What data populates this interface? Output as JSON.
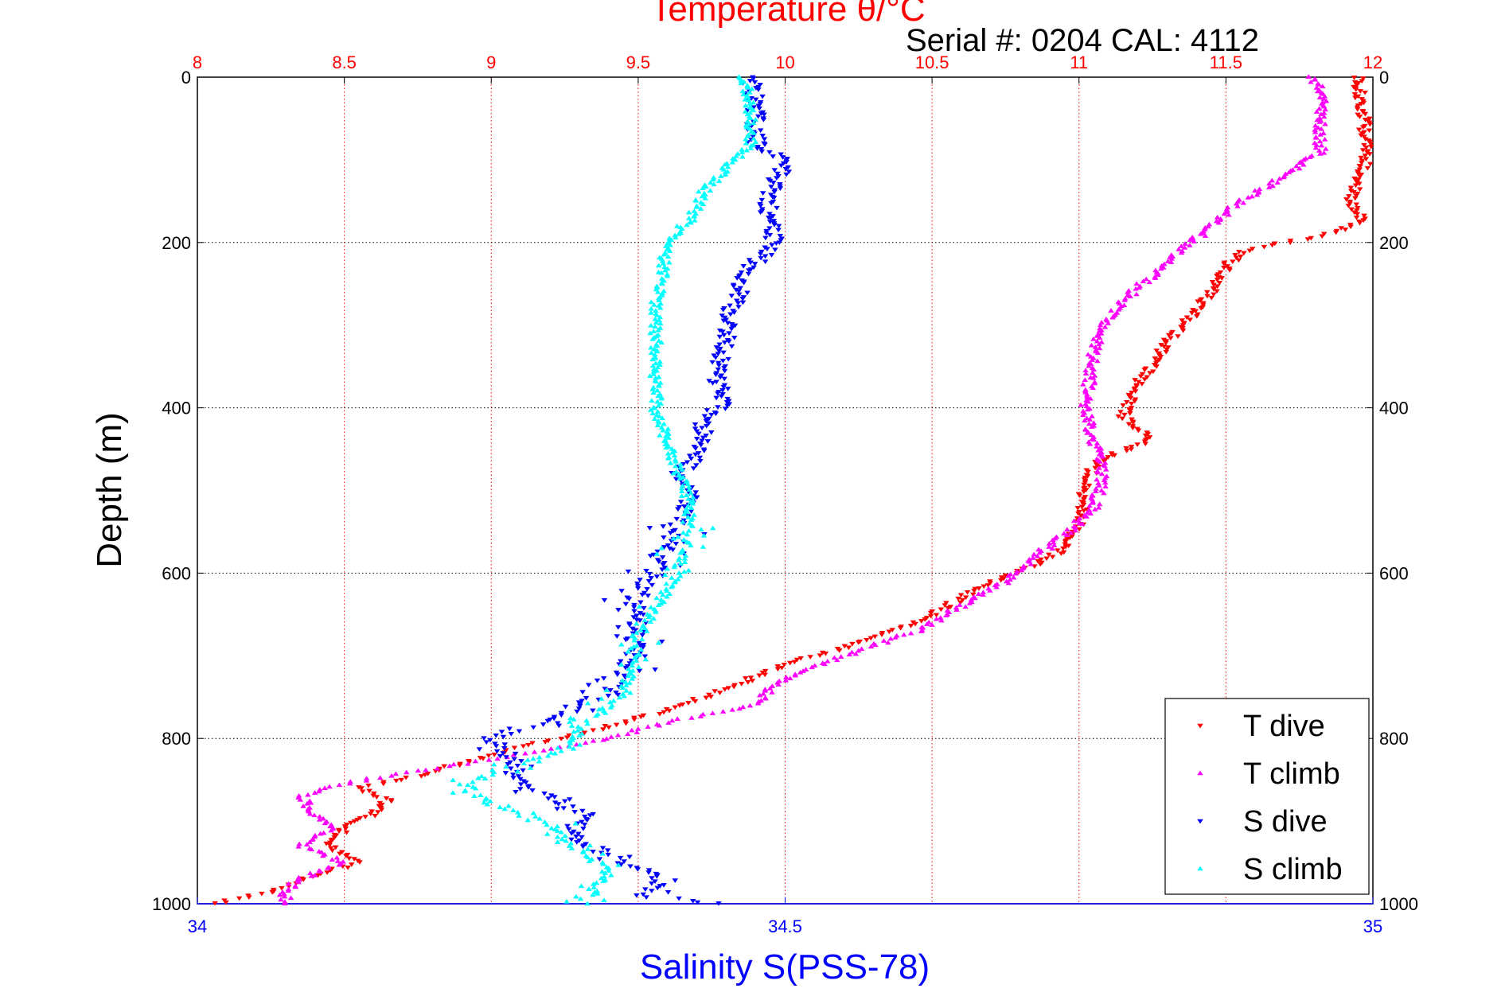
{
  "chart_data": {
    "type": "scatter",
    "title_top": "Temperature θ/°C",
    "serial_label": "Serial #: 0204  CAL: 4112",
    "xlabel": "Salinity S(PSS-78)",
    "ylabel": "Depth (m)",
    "top_axis": {
      "label": "Temperature θ/°C",
      "range": [
        8,
        12
      ],
      "ticks": [
        "8",
        "8.5",
        "9",
        "9.5",
        "10",
        "10.5",
        "11",
        "11.5",
        "12"
      ],
      "color": "#ff0000",
      "grid": true
    },
    "bottom_axis": {
      "label": "Salinity S(PSS-78)",
      "range": [
        34,
        35
      ],
      "ticks": [
        "34",
        "34.5",
        "35"
      ],
      "color": "#0000ff"
    },
    "depth_axis": {
      "range": [
        0,
        1000
      ],
      "reversed": true,
      "ticks": [
        "0",
        "200",
        "400",
        "600",
        "800",
        "1000"
      ],
      "grid": true
    },
    "legend": {
      "placement": "bottom-right",
      "entries": [
        "T dive",
        "T climb",
        "S dive",
        "S climb"
      ]
    },
    "series": [
      {
        "name": "T dive",
        "axis": "temperature",
        "color": "#ff0000",
        "marker": "triangle-down",
        "profile": [
          [
            0,
            11.95
          ],
          [
            50,
            11.97
          ],
          [
            100,
            11.98
          ],
          [
            150,
            11.92
          ],
          [
            175,
            11.97
          ],
          [
            190,
            11.85
          ],
          [
            200,
            11.7
          ],
          [
            210,
            11.55
          ],
          [
            230,
            11.5
          ],
          [
            260,
            11.45
          ],
          [
            290,
            11.38
          ],
          [
            320,
            11.3
          ],
          [
            350,
            11.25
          ],
          [
            370,
            11.2
          ],
          [
            390,
            11.18
          ],
          [
            410,
            11.15
          ],
          [
            425,
            11.2
          ],
          [
            440,
            11.25
          ],
          [
            455,
            11.12
          ],
          [
            470,
            11.05
          ],
          [
            500,
            11.02
          ],
          [
            540,
            11.0
          ],
          [
            570,
            10.95
          ],
          [
            590,
            10.85
          ],
          [
            610,
            10.7
          ],
          [
            640,
            10.55
          ],
          [
            660,
            10.45
          ],
          [
            690,
            10.2
          ],
          [
            710,
            10.0
          ],
          [
            740,
            9.8
          ],
          [
            770,
            9.55
          ],
          [
            790,
            9.35
          ],
          [
            810,
            9.1
          ],
          [
            830,
            8.9
          ],
          [
            850,
            8.7
          ],
          [
            860,
            8.55
          ],
          [
            875,
            8.65
          ],
          [
            890,
            8.6
          ],
          [
            910,
            8.5
          ],
          [
            930,
            8.45
          ],
          [
            950,
            8.55
          ],
          [
            970,
            8.35
          ],
          [
            985,
            8.25
          ],
          [
            1000,
            8.05
          ]
        ]
      },
      {
        "name": "T climb",
        "axis": "temperature",
        "color": "#ff00ff",
        "marker": "triangle-up",
        "profile": [
          [
            0,
            11.8
          ],
          [
            30,
            11.83
          ],
          [
            60,
            11.82
          ],
          [
            90,
            11.82
          ],
          [
            120,
            11.7
          ],
          [
            150,
            11.55
          ],
          [
            180,
            11.45
          ],
          [
            210,
            11.35
          ],
          [
            240,
            11.25
          ],
          [
            270,
            11.15
          ],
          [
            300,
            11.08
          ],
          [
            330,
            11.05
          ],
          [
            360,
            11.04
          ],
          [
            400,
            11.02
          ],
          [
            430,
            11.04
          ],
          [
            460,
            11.07
          ],
          [
            490,
            11.08
          ],
          [
            520,
            11.05
          ],
          [
            550,
            10.97
          ],
          [
            580,
            10.85
          ],
          [
            610,
            10.75
          ],
          [
            640,
            10.6
          ],
          [
            670,
            10.45
          ],
          [
            700,
            10.2
          ],
          [
            720,
            10.05
          ],
          [
            740,
            9.95
          ],
          [
            760,
            9.9
          ],
          [
            780,
            9.6
          ],
          [
            800,
            9.4
          ],
          [
            820,
            9.1
          ],
          [
            840,
            8.75
          ],
          [
            855,
            8.5
          ],
          [
            870,
            8.35
          ],
          [
            890,
            8.4
          ],
          [
            910,
            8.45
          ],
          [
            930,
            8.35
          ],
          [
            950,
            8.5
          ],
          [
            970,
            8.35
          ],
          [
            985,
            8.3
          ]
        ]
      },
      {
        "name": "S dive",
        "axis": "salinity",
        "color": "#0000ff",
        "marker": "triangle-down",
        "profile": [
          [
            0,
            34.47
          ],
          [
            40,
            34.475
          ],
          [
            80,
            34.475
          ],
          [
            100,
            34.5
          ],
          [
            130,
            34.49
          ],
          [
            160,
            34.485
          ],
          [
            200,
            34.49
          ],
          [
            240,
            34.465
          ],
          [
            280,
            34.455
          ],
          [
            320,
            34.45
          ],
          [
            360,
            34.44
          ],
          [
            390,
            34.45
          ],
          [
            420,
            34.43
          ],
          [
            450,
            34.43
          ],
          [
            480,
            34.41
          ],
          [
            510,
            34.42
          ],
          [
            540,
            34.41
          ],
          [
            570,
            34.4
          ],
          [
            600,
            34.39
          ],
          [
            630,
            34.37
          ],
          [
            660,
            34.375
          ],
          [
            700,
            34.37
          ],
          [
            740,
            34.35
          ],
          [
            780,
            34.3
          ],
          [
            800,
            34.25
          ],
          [
            830,
            34.27
          ],
          [
            860,
            34.28
          ],
          [
            890,
            34.33
          ],
          [
            920,
            34.32
          ],
          [
            950,
            34.36
          ],
          [
            970,
            34.4
          ],
          [
            990,
            34.38
          ],
          [
            1000,
            34.45
          ]
        ]
      },
      {
        "name": "S climb",
        "axis": "salinity",
        "color": "#00ffff",
        "marker": "triangle-up",
        "profile": [
          [
            0,
            34.465
          ],
          [
            40,
            34.47
          ],
          [
            80,
            34.47
          ],
          [
            110,
            34.45
          ],
          [
            140,
            34.43
          ],
          [
            170,
            34.42
          ],
          [
            200,
            34.4
          ],
          [
            240,
            34.395
          ],
          [
            280,
            34.39
          ],
          [
            320,
            34.39
          ],
          [
            360,
            34.39
          ],
          [
            400,
            34.39
          ],
          [
            440,
            34.4
          ],
          [
            480,
            34.41
          ],
          [
            520,
            34.42
          ],
          [
            560,
            34.415
          ],
          [
            600,
            34.41
          ],
          [
            640,
            34.39
          ],
          [
            680,
            34.375
          ],
          [
            720,
            34.37
          ],
          [
            750,
            34.36
          ],
          [
            780,
            34.33
          ],
          [
            800,
            34.32
          ],
          [
            820,
            34.3
          ],
          [
            840,
            34.25
          ],
          [
            860,
            34.23
          ],
          [
            880,
            34.25
          ],
          [
            900,
            34.3
          ],
          [
            920,
            34.31
          ],
          [
            940,
            34.33
          ],
          [
            960,
            34.35
          ],
          [
            980,
            34.34
          ],
          [
            1000,
            34.33
          ]
        ]
      }
    ]
  }
}
